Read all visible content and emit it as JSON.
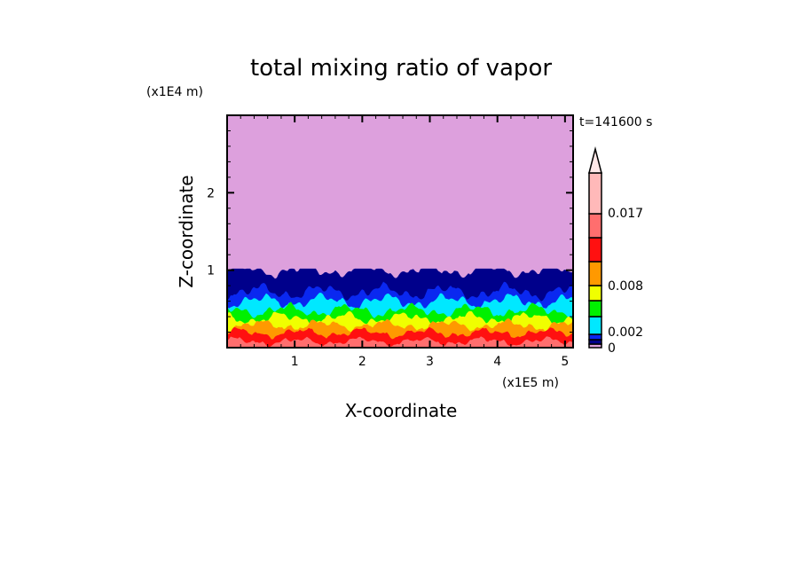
{
  "chart_data": {
    "type": "heatmap",
    "subtype": "filled-contour",
    "title": "total mixing ratio of vapor",
    "xlabel": "X-coordinate",
    "ylabel": "Z-coordinate",
    "x_unit": "(x1E5 m)",
    "y_unit": "(x1E4 m)",
    "time_label": "t=141600 s",
    "xlim": [
      0,
      5.12
    ],
    "ylim": [
      0,
      3.0
    ],
    "x_ticks": [
      "1",
      "2",
      "3",
      "4",
      "5"
    ],
    "y_ticks": [
      "1",
      "2"
    ],
    "grid": false,
    "colorbar": {
      "placement": "right",
      "labels": [
        {
          "text": "0",
          "value": 0
        },
        {
          "text": "0.002",
          "value": 0.002
        },
        {
          "text": "0.008",
          "value": 0.008
        },
        {
          "text": "0.017",
          "value": 0.017
        }
      ],
      "colors": [
        "#dda0dd",
        "#00008b",
        "#0a28f0",
        "#00e8ff",
        "#00f000",
        "#f0ff00",
        "#ff9900",
        "#ff1010",
        "#ff6e6e",
        "#ffb9b9",
        "#ffe8e8"
      ],
      "extend": "max"
    },
    "layers_mean_top_height": [
      {
        "color": "#00008b",
        "z": 1.0
      },
      {
        "color": "#0a28f0",
        "z": 0.72
      },
      {
        "color": "#00e8ff",
        "z": 0.6
      },
      {
        "color": "#00f000",
        "z": 0.48
      },
      {
        "color": "#f0ff00",
        "z": 0.38
      },
      {
        "color": "#ff9900",
        "z": 0.29
      },
      {
        "color": "#ff1010",
        "z": 0.19
      },
      {
        "color": "#ff6e6e",
        "z": 0.08
      }
    ],
    "background_color": "#dda0dd"
  }
}
